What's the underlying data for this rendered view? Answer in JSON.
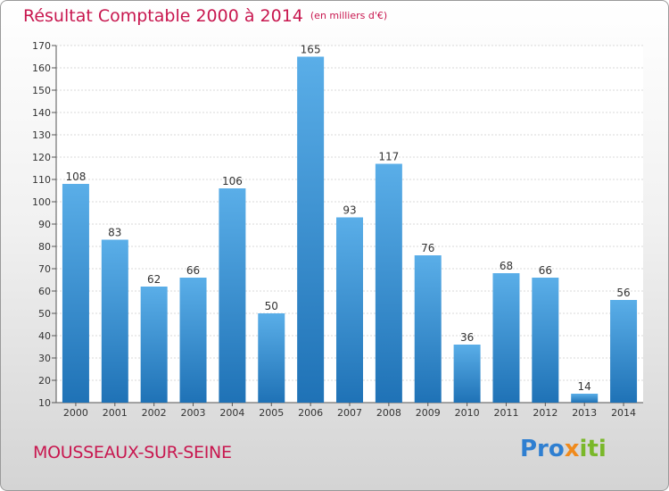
{
  "title": "Résultat Comptable 2000 à 2014",
  "unit_label": "(en milliers d'€)",
  "commune": "MOUSSEAUX-SUR-SEINE",
  "logo": {
    "part1": "Pro",
    "part2": "x",
    "part3": "iti"
  },
  "colors": {
    "accent": "#c8174f",
    "bar_top": "#5aaee8",
    "bar_bottom": "#1f72b6"
  },
  "chart_data": {
    "type": "bar",
    "title": "Résultat Comptable 2000 à 2014",
    "xlabel": "",
    "ylabel": "",
    "ylim": [
      10,
      170
    ],
    "yticks": [
      10,
      20,
      30,
      40,
      50,
      60,
      70,
      80,
      90,
      100,
      110,
      120,
      130,
      140,
      150,
      160,
      170
    ],
    "grid": true,
    "categories": [
      "2000",
      "2001",
      "2002",
      "2003",
      "2004",
      "2005",
      "2006",
      "2007",
      "2008",
      "2009",
      "2010",
      "2011",
      "2012",
      "2013",
      "2014"
    ],
    "values": [
      108,
      83,
      62,
      66,
      106,
      50,
      165,
      93,
      117,
      76,
      36,
      68,
      66,
      14,
      56
    ]
  }
}
